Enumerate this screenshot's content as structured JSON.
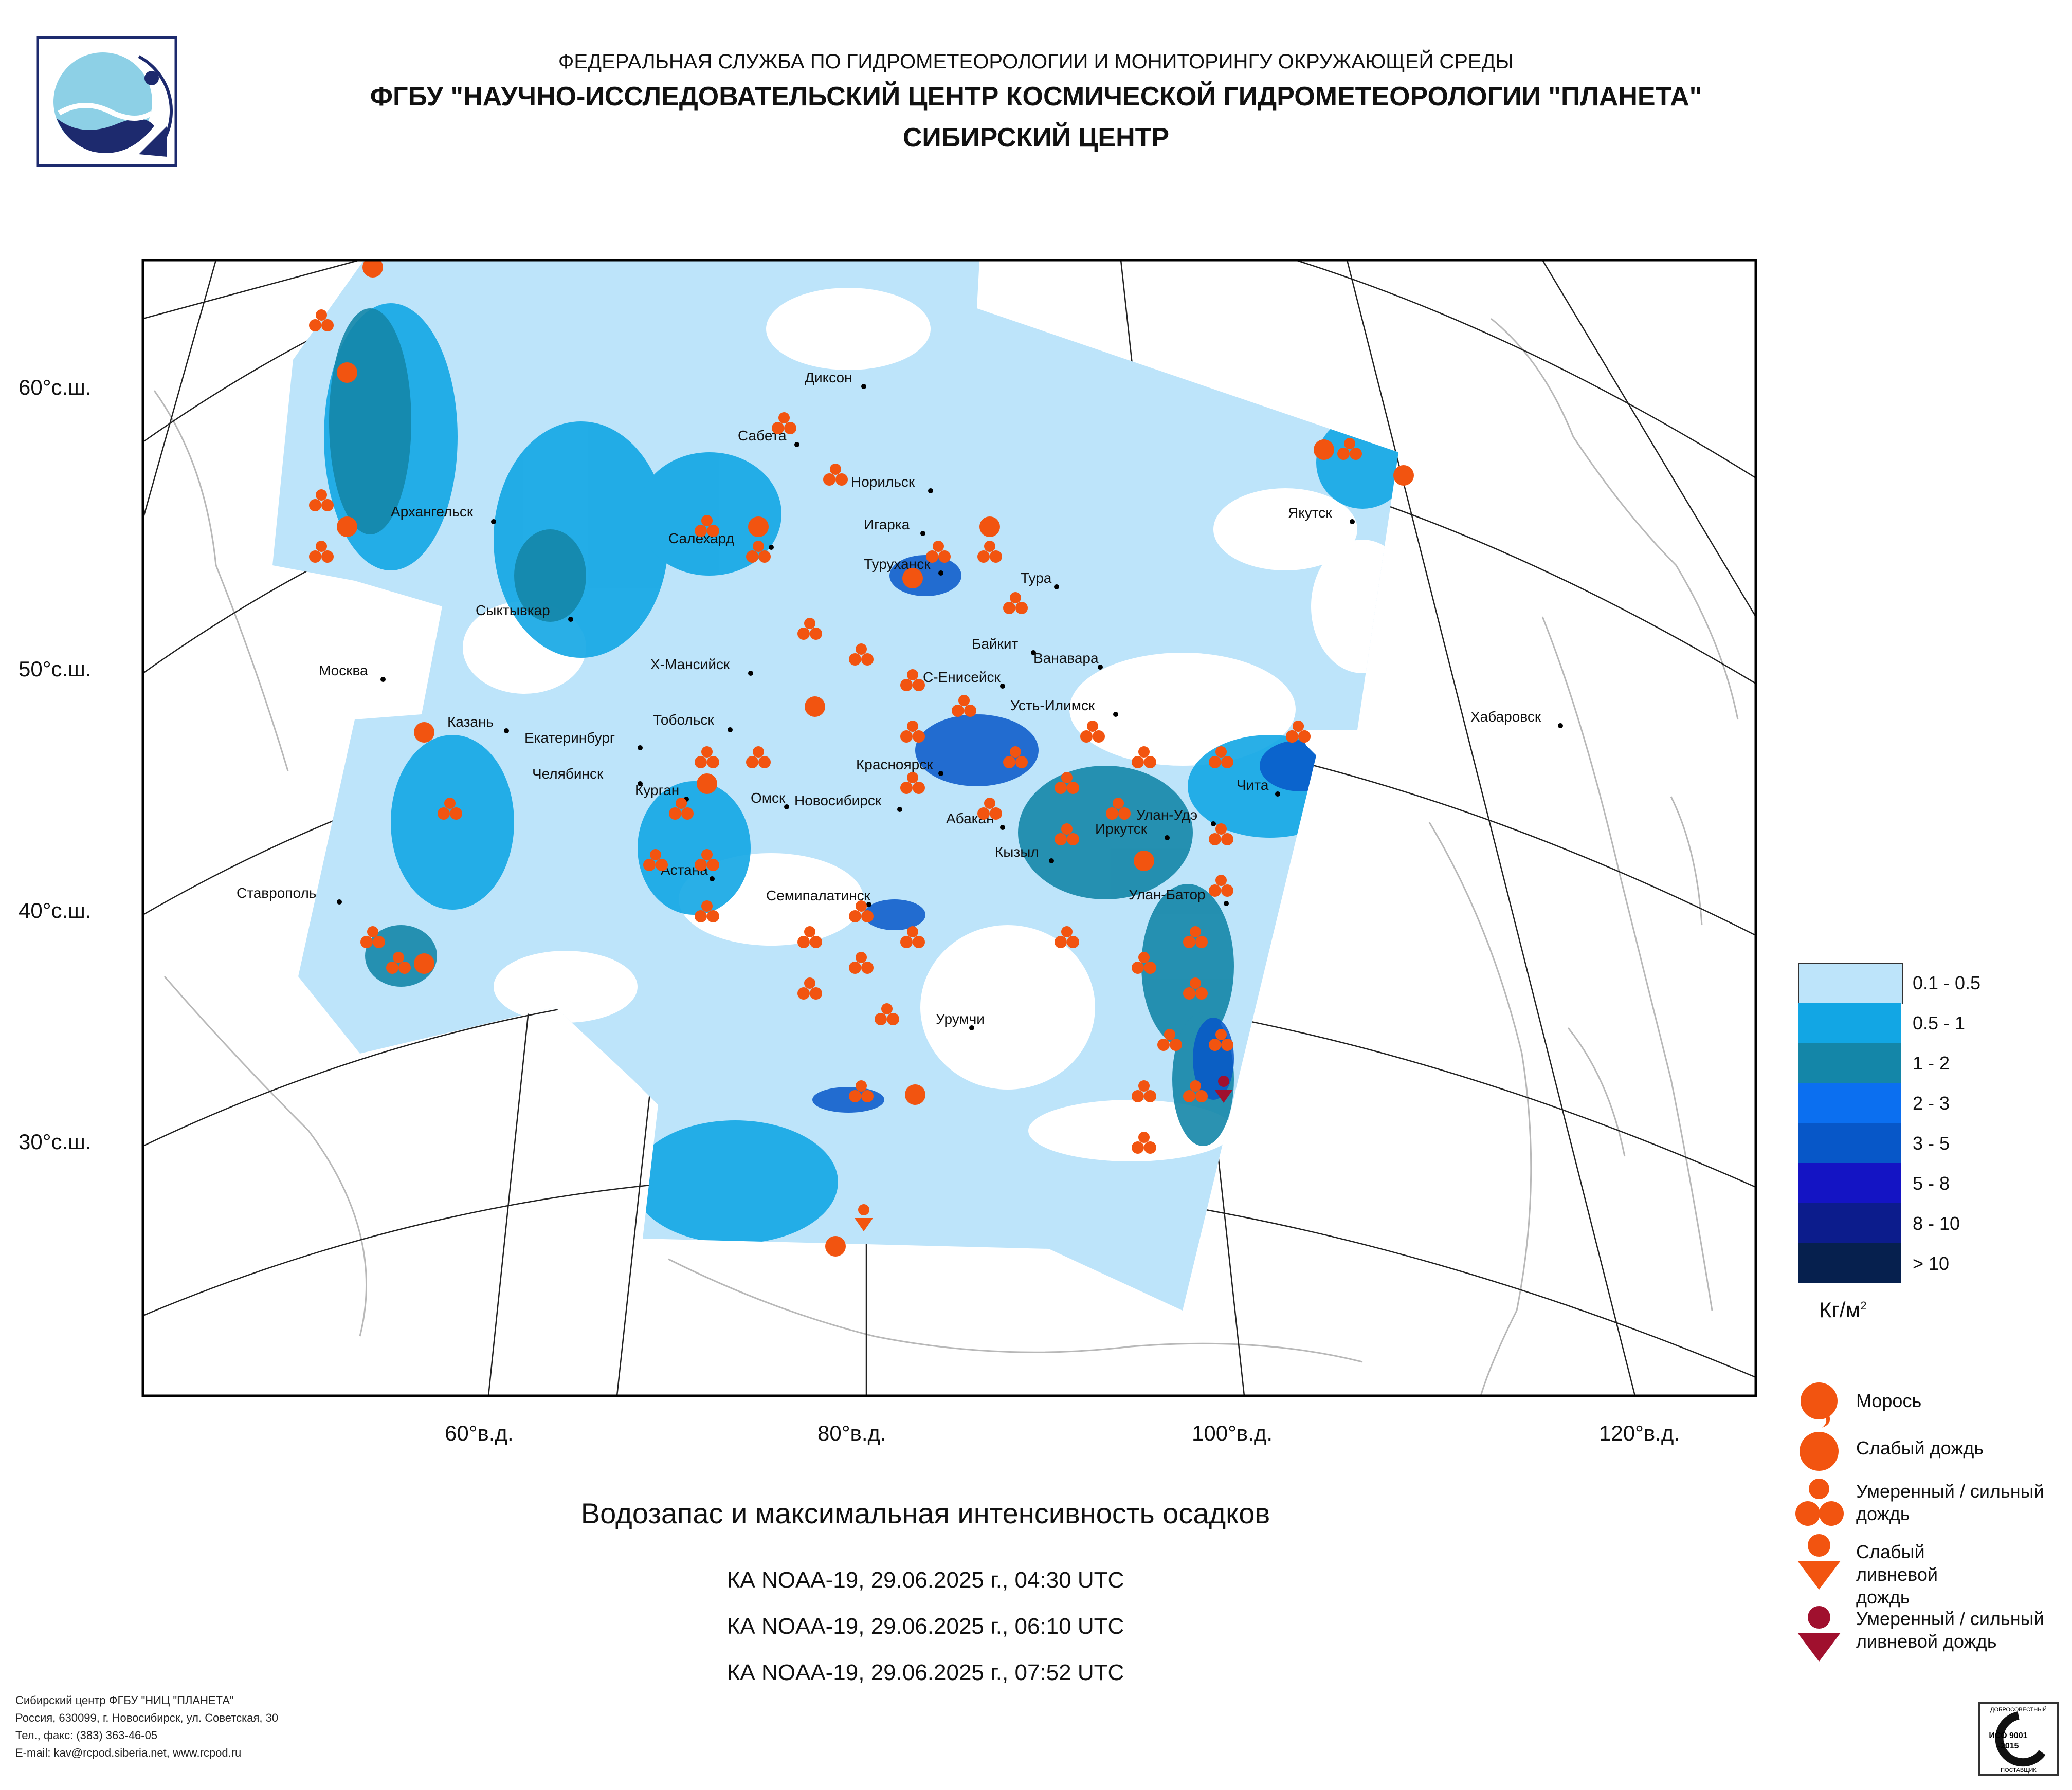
{
  "header": {
    "line1": "ФЕДЕРАЛЬНАЯ СЛУЖБА ПО ГИДРОМЕТЕОРОЛОГИИ И МОНИТОРИНГУ ОКРУЖАЮЩЕЙ СРЕДЫ",
    "line2": "ФГБУ \"НАУЧНО-ИССЛЕДОВАТЕЛЬСКИЙ ЦЕНТР КОСМИЧЕСКОЙ ГИДРОМЕТЕОРОЛОГИИ \"ПЛАНЕТА\"",
    "line3": "СИБИРСКИЙ ЦЕНТР"
  },
  "axes": {
    "lat_labels": [
      "60°с.ш.",
      "50°с.ш.",
      "40°с.ш.",
      "30°с.ш."
    ],
    "lon_labels": [
      "60°в.д.",
      "80°в.д.",
      "100°в.д.",
      "120°в.д."
    ]
  },
  "cities": [
    "Диксон",
    "Сабета",
    "Норильск",
    "Архангельск",
    "Салехард",
    "Игарка",
    "Туруханск",
    "Тура",
    "Якутск",
    "Сыктывкар",
    "Байкит",
    "Ванавара",
    "Москва",
    "Х-Мансийск",
    "С-Енисейск",
    "Усть-Илимск",
    "Хабаровск",
    "Казань",
    "Екатеринбург",
    "Тобольск",
    "Челябинск",
    "Курган",
    "Красноярск",
    "Чита",
    "Омск",
    "Новосибирск",
    "Абакан",
    "Улан-Удэ",
    "Иркутск",
    "Кызыл",
    "Ставрополь",
    "Астана",
    "Улан-Батор",
    "Семипалатинск",
    "Урумчи"
  ],
  "legend": {
    "colors": [
      {
        "label": "0.1 - 0.5",
        "color": "#bde4fa"
      },
      {
        "label": "0.5 - 1",
        "color": "#12a6e4"
      },
      {
        "label": "1 - 2",
        "color": "#1486a8"
      },
      {
        "label": "2 - 3",
        "color": "#0b6ff0"
      },
      {
        "label": "3 - 5",
        "color": "#0757c8"
      },
      {
        "label": "5 - 8",
        "color": "#1414c4"
      },
      {
        "label": "8 - 10",
        "color": "#0c1c8c"
      },
      {
        "label": "> 10",
        "color": "#06204e"
      }
    ],
    "units": "Кг/м",
    "units_sup": "2",
    "symbols": [
      {
        "label": "Морось",
        "icon": "drizzle-icon"
      },
      {
        "label": "Слабый дождь",
        "icon": "light-rain-icon"
      },
      {
        "label": "Умеренный / сильный дождь",
        "icon": "moderate-rain-icon"
      },
      {
        "label": "Слабый ливневой дождь",
        "icon": "light-shower-icon"
      },
      {
        "label": "Умеренный / сильный ливневой дождь",
        "icon": "heavy-shower-icon"
      }
    ],
    "symbol_colors": {
      "rain": "#f25410",
      "shower": "#f25410",
      "heavy_shower": "#a0102e"
    }
  },
  "caption": {
    "title": "Водозапас и максимальная интенсивность осадков",
    "passes": [
      "КА NOAA-19, 29.06.2025 г., 04:30 UTC",
      "КА NOAA-19, 29.06.2025 г., 06:10 UTC",
      "КА NOAA-19, 29.06.2025 г., 07:52 UTC"
    ]
  },
  "footer": {
    "line1": "Сибирский центр ФГБУ \"НИЦ \"ПЛАНЕТА\"",
    "line2": "Россия, 630099, г. Новосибирск, ул. Советская, 30",
    "line3": "Тел., факс: (383) 363-46-05",
    "line4": "E-mail: kav@rcpod.siberia.net, www.rcpod.ru"
  },
  "iso_badge": {
    "top": "ДОБРОСОВЕСТНЫЙ",
    "code": "ИСО 9001 -2015",
    "bottom": "ПОСТАВЩИК"
  }
}
